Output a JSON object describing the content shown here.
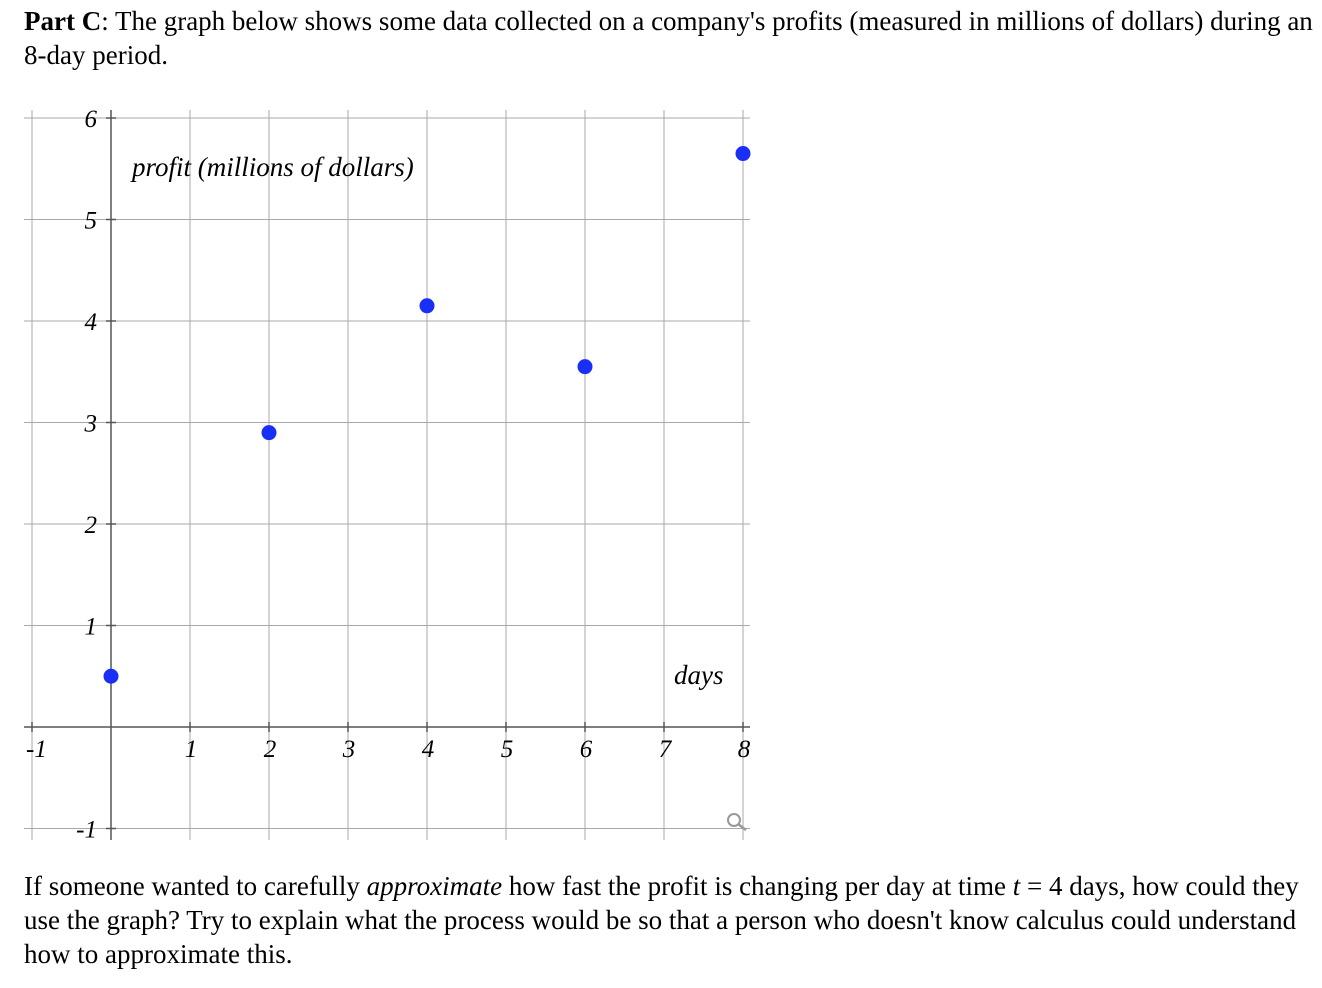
{
  "intro": {
    "bold": "Part C",
    "text": ": The graph below shows some data collected on a company's profits (measured in millions of dollars) during an 8-day period."
  },
  "question": {
    "part1": "If someone wanted to carefully ",
    "emph": "approximate",
    "part2": " how fast the profit is changing per day at time ",
    "var": "t",
    "part3": " = 4 days, how could they use the graph? Try to explain what the process would be so that a person who doesn't know calculus could understand how to approximate this."
  },
  "chart_data": {
    "type": "scatter",
    "ylabel": "profit (millions of dollars)",
    "xlabel": "days",
    "xlim": [
      -1,
      8
    ],
    "ylim": [
      -1,
      6
    ],
    "x_ticks": [
      "-1",
      "1",
      "2",
      "3",
      "4",
      "5",
      "6",
      "7",
      "8"
    ],
    "y_ticks": [
      "-1",
      "1",
      "2",
      "3",
      "4",
      "5",
      "6"
    ],
    "grid": true,
    "point_color": "#1a2ff5",
    "points": [
      {
        "x": 0,
        "y": 0.5
      },
      {
        "x": 2,
        "y": 2.9
      },
      {
        "x": 4,
        "y": 4.15
      },
      {
        "x": 6,
        "y": 3.55
      },
      {
        "x": 8,
        "y": 5.65
      }
    ],
    "icon": "zoom-icon"
  }
}
